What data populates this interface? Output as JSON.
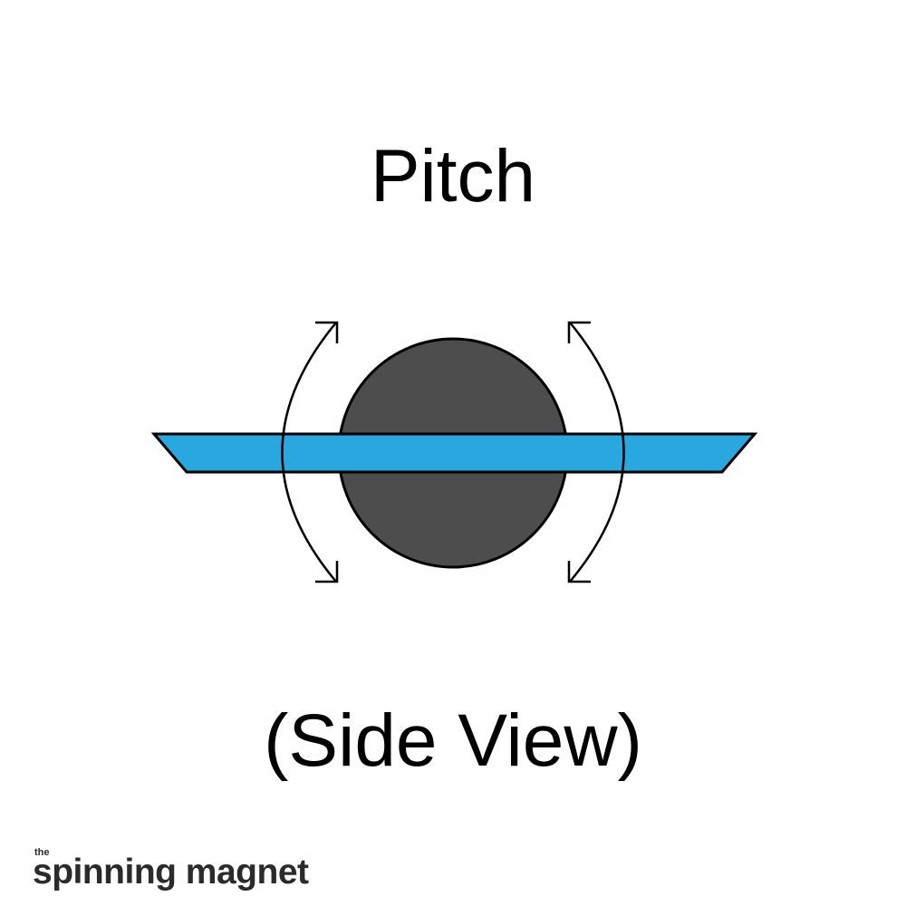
{
  "title": "Pitch",
  "subtitle": "(Side View)",
  "logo": {
    "small": "the",
    "main": "spinning magnet"
  },
  "colors": {
    "board": "#29a8e0",
    "wheel": "#4d4d4d",
    "outline": "#000000",
    "text": "#000000",
    "logo": "#2b2b2b"
  },
  "icons": [
    "curved-arrow-left",
    "curved-arrow-right"
  ]
}
